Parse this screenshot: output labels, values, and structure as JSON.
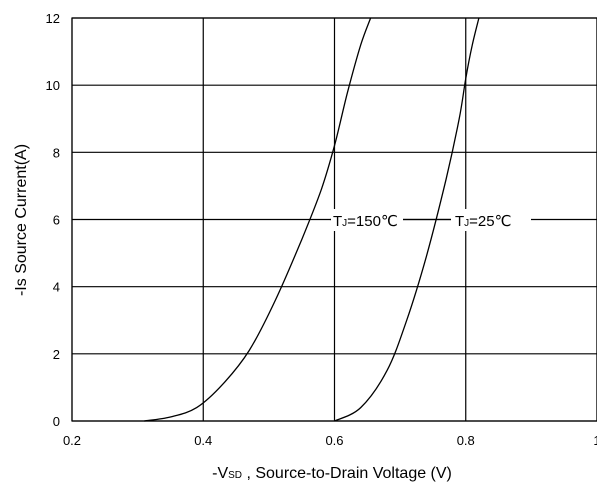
{
  "chart_data": {
    "type": "line",
    "xlabel": {
      "prefix": "-V",
      "subscript": "SD",
      "suffix": " , Source-to-Drain Voltage (V)"
    },
    "ylabel": "-Is Source Current(A)",
    "xlim": [
      0.2,
      1.0
    ],
    "ylim": [
      0,
      12
    ],
    "x_ticks": [
      0.2,
      0.4,
      0.6,
      0.8,
      1.0
    ],
    "x_tick_labels": [
      "0.2",
      "0.4",
      "0.6",
      "0.8",
      "1"
    ],
    "y_ticks": [
      0,
      2,
      4,
      6,
      8,
      10,
      12
    ],
    "y_tick_labels": [
      "0",
      "2",
      "4",
      "6",
      "8",
      "10",
      "12"
    ],
    "grid": true,
    "series": [
      {
        "label_prefix": "T",
        "label_subscript": "J",
        "label_suffix": "=150℃",
        "x": [
          0.31,
          0.35,
          0.39,
          0.43,
          0.47,
          0.51,
          0.55,
          0.58,
          0.6,
          0.62,
          0.64,
          0.655
        ],
        "y": [
          0.0,
          0.12,
          0.4,
          1.1,
          2.1,
          3.6,
          5.4,
          6.9,
          8.2,
          9.8,
          11.2,
          12.0
        ]
      },
      {
        "label_prefix": "T",
        "label_subscript": "J",
        "label_suffix": "=25℃",
        "x": [
          0.6,
          0.64,
          0.68,
          0.71,
          0.74,
          0.77,
          0.79,
          0.8,
          0.81,
          0.82
        ],
        "y": [
          0.0,
          0.4,
          1.5,
          3.0,
          4.9,
          7.2,
          9.0,
          10.2,
          11.2,
          12.0
        ]
      }
    ],
    "annotation": {
      "y": 6.0,
      "x_from": 0.593,
      "x_to": 0.875
    }
  },
  "colors": {
    "background": "#ffffff",
    "grid": "#000000",
    "line": "#000000"
  }
}
